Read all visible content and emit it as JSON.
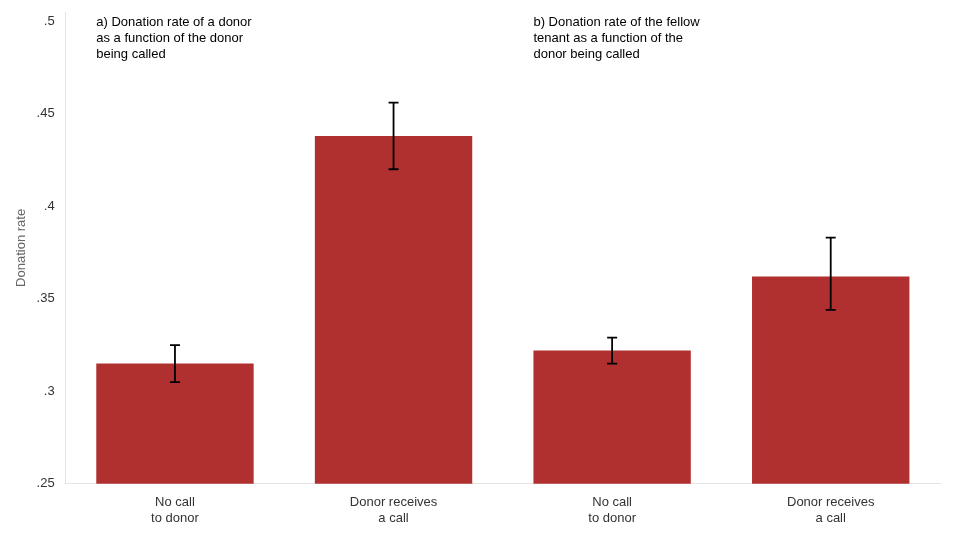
{
  "chart_data": {
    "type": "bar",
    "ylabel": "Donation rate",
    "categories": [
      "No call\nto donor",
      "Donor receives\na call",
      "No call\nto donor",
      "Donor receives\na call"
    ],
    "values": [
      0.315,
      0.438,
      0.322,
      0.362
    ],
    "errors_low": [
      0.01,
      0.018,
      0.007,
      0.018
    ],
    "errors_high": [
      0.01,
      0.018,
      0.007,
      0.021
    ],
    "color": "#b03030",
    "ylim": [
      0.25,
      0.505
    ],
    "yticks": [
      {
        "value": 0.25,
        "label": ".25"
      },
      {
        "value": 0.3,
        "label": ".3"
      },
      {
        "value": 0.35,
        "label": ".35"
      },
      {
        "value": 0.4,
        "label": ".4"
      },
      {
        "value": 0.45,
        "label": ".45"
      },
      {
        "value": 0.5,
        "label": ".5"
      }
    ],
    "grid": false,
    "annotations": [
      "a) Donation rate of a donor\nas a function of the donor\nbeing called",
      "b) Donation rate of the fellow\ntenant as a function of the\ndonor being called"
    ]
  }
}
